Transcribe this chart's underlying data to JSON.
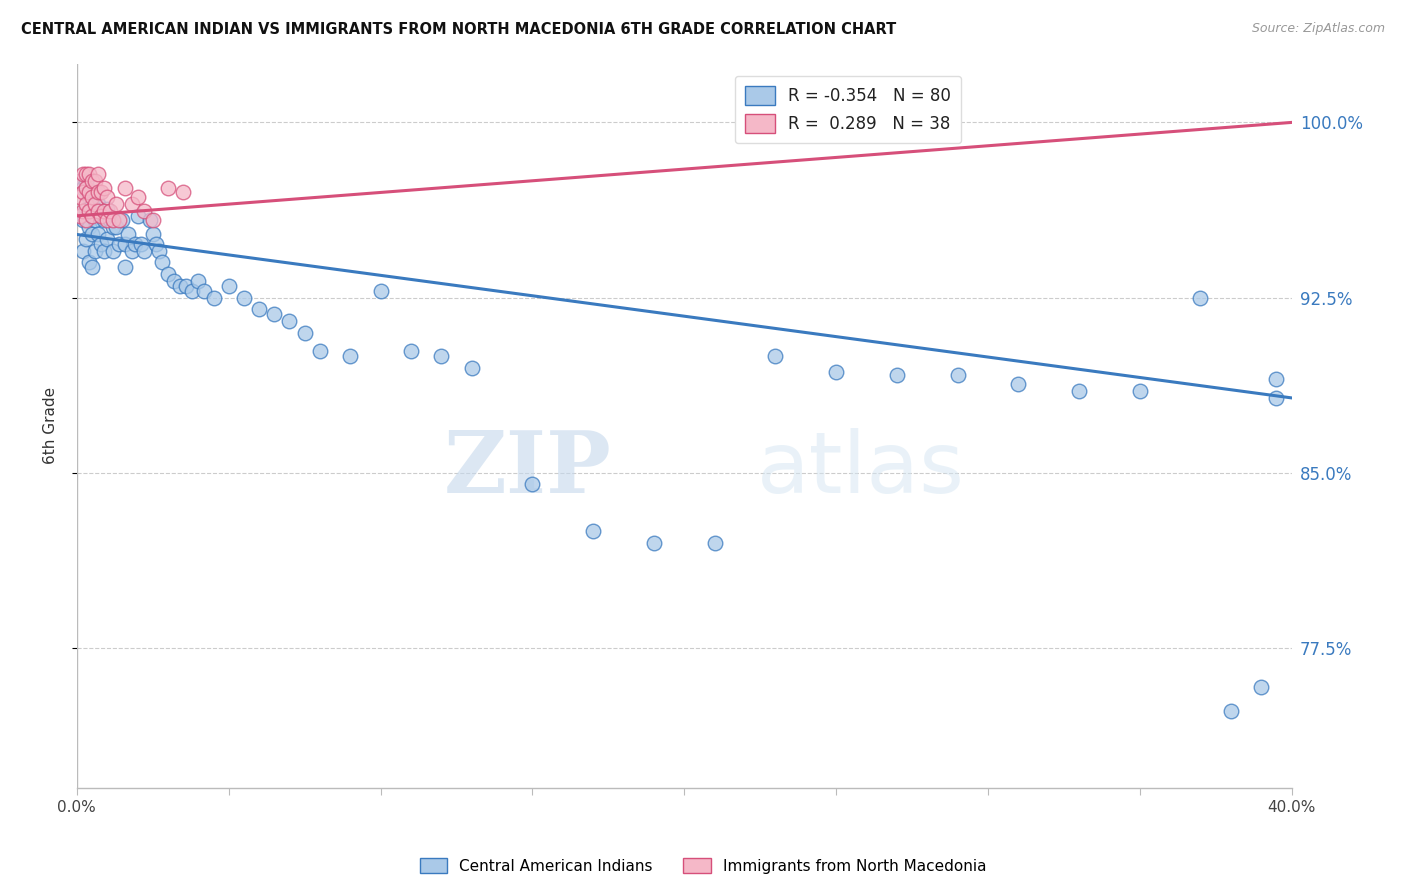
{
  "title": "CENTRAL AMERICAN INDIAN VS IMMIGRANTS FROM NORTH MACEDONIA 6TH GRADE CORRELATION CHART",
  "source": "Source: ZipAtlas.com",
  "ylabel": "6th Grade",
  "ytick_values": [
    1.0,
    0.925,
    0.85,
    0.775
  ],
  "xlim": [
    0.0,
    0.4
  ],
  "ylim": [
    0.715,
    1.025
  ],
  "blue_R": -0.354,
  "blue_N": 80,
  "pink_R": 0.289,
  "pink_N": 38,
  "blue_color": "#aac9e8",
  "pink_color": "#f5b8c8",
  "blue_line_color": "#3a7abf",
  "pink_line_color": "#d64f7a",
  "blue_label": "Central American Indians",
  "pink_label": "Immigrants from North Macedonia",
  "watermark_zip": "ZIP",
  "watermark_atlas": "atlas",
  "blue_x": [
    0.001,
    0.001,
    0.002,
    0.002,
    0.002,
    0.003,
    0.003,
    0.003,
    0.004,
    0.004,
    0.004,
    0.005,
    0.005,
    0.005,
    0.006,
    0.006,
    0.006,
    0.007,
    0.007,
    0.008,
    0.008,
    0.009,
    0.009,
    0.01,
    0.01,
    0.011,
    0.012,
    0.012,
    0.013,
    0.014,
    0.015,
    0.016,
    0.016,
    0.017,
    0.018,
    0.019,
    0.02,
    0.021,
    0.022,
    0.024,
    0.025,
    0.026,
    0.027,
    0.028,
    0.03,
    0.032,
    0.034,
    0.036,
    0.038,
    0.04,
    0.042,
    0.045,
    0.05,
    0.055,
    0.06,
    0.065,
    0.07,
    0.075,
    0.08,
    0.09,
    0.1,
    0.11,
    0.12,
    0.13,
    0.15,
    0.17,
    0.19,
    0.21,
    0.23,
    0.25,
    0.27,
    0.29,
    0.31,
    0.33,
    0.35,
    0.37,
    0.38,
    0.39,
    0.395,
    0.395
  ],
  "blue_y": [
    0.975,
    0.96,
    0.972,
    0.958,
    0.945,
    0.975,
    0.963,
    0.95,
    0.968,
    0.955,
    0.94,
    0.965,
    0.952,
    0.938,
    0.97,
    0.958,
    0.945,
    0.965,
    0.952,
    0.96,
    0.948,
    0.958,
    0.945,
    0.963,
    0.95,
    0.958,
    0.955,
    0.945,
    0.955,
    0.948,
    0.958,
    0.948,
    0.938,
    0.952,
    0.945,
    0.948,
    0.96,
    0.948,
    0.945,
    0.958,
    0.952,
    0.948,
    0.945,
    0.94,
    0.935,
    0.932,
    0.93,
    0.93,
    0.928,
    0.932,
    0.928,
    0.925,
    0.93,
    0.925,
    0.92,
    0.918,
    0.915,
    0.91,
    0.902,
    0.9,
    0.928,
    0.902,
    0.9,
    0.895,
    0.845,
    0.825,
    0.82,
    0.82,
    0.9,
    0.893,
    0.892,
    0.892,
    0.888,
    0.885,
    0.885,
    0.925,
    0.748,
    0.758,
    0.89,
    0.882
  ],
  "pink_x": [
    0.001,
    0.001,
    0.001,
    0.002,
    0.002,
    0.002,
    0.003,
    0.003,
    0.003,
    0.003,
    0.004,
    0.004,
    0.004,
    0.005,
    0.005,
    0.005,
    0.006,
    0.006,
    0.007,
    0.007,
    0.007,
    0.008,
    0.008,
    0.009,
    0.009,
    0.01,
    0.01,
    0.011,
    0.012,
    0.013,
    0.014,
    0.016,
    0.018,
    0.02,
    0.022,
    0.025,
    0.03,
    0.035
  ],
  "pink_y": [
    0.975,
    0.968,
    0.96,
    0.978,
    0.97,
    0.962,
    0.978,
    0.972,
    0.965,
    0.958,
    0.978,
    0.97,
    0.962,
    0.975,
    0.968,
    0.96,
    0.975,
    0.965,
    0.978,
    0.97,
    0.962,
    0.97,
    0.96,
    0.972,
    0.962,
    0.968,
    0.958,
    0.962,
    0.958,
    0.965,
    0.958,
    0.972,
    0.965,
    0.968,
    0.962,
    0.958,
    0.972,
    0.97
  ],
  "blue_line_x0": 0.0,
  "blue_line_y0": 0.952,
  "blue_line_x1": 0.4,
  "blue_line_y1": 0.882,
  "pink_line_x0": 0.0,
  "pink_line_y0": 0.96,
  "pink_line_x1": 0.4,
  "pink_line_y1": 1.0
}
